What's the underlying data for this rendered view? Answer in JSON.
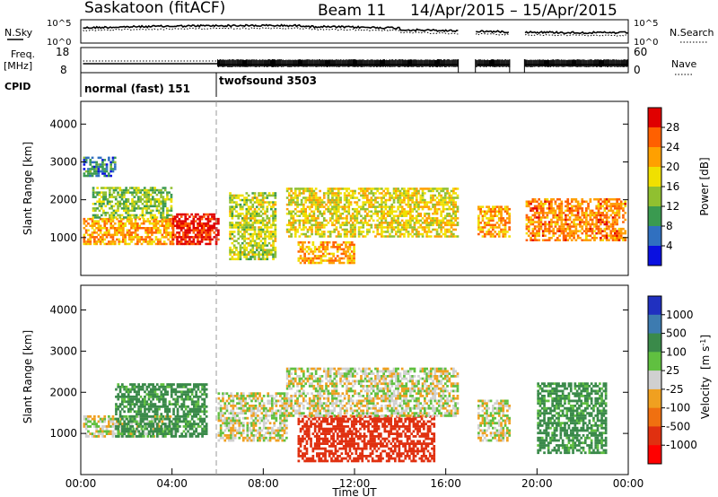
{
  "header": {
    "station": "Saskatoon (fitACF)",
    "beam": "Beam 11",
    "period": "14/Apr/2015 – 15/Apr/2015"
  },
  "noise_panel": {
    "left_label": "N.Sky",
    "right_label": "N.Search",
    "ticks": [
      "10^5",
      "10^0"
    ]
  },
  "freq_panel": {
    "left_label_1": "Freq.",
    "left_label_2": "[MHz]",
    "left_ticks": [
      "18",
      "8"
    ],
    "right_label": "Nave",
    "right_ticks": [
      "60",
      "0"
    ]
  },
  "cpid": {
    "label": "CPID",
    "segments": [
      {
        "name": "normal (fast) 151",
        "start": 0,
        "end": 6
      },
      {
        "name": "twofsound 3503",
        "start": 6,
        "end": 24
      }
    ]
  },
  "power_colorbar": {
    "label": "Power [dB]",
    "ticks": [
      "28",
      "24",
      "20",
      "16",
      "12",
      "8",
      "4"
    ],
    "colors": [
      "#e00000",
      "#ff6000",
      "#ffa000",
      "#f0e000",
      "#90c030",
      "#3a9a50",
      "#3070c0",
      "#0a10e0"
    ]
  },
  "velocity_colorbar": {
    "label_main": "Velocity",
    "label_unit": "[m s",
    "label_sup": "-1",
    "label_close": "]",
    "ticks": [
      "1000",
      "500",
      "100",
      "25",
      "-25",
      "-100",
      "-500",
      "-1000"
    ],
    "colors": [
      "#2030c0",
      "#3d7bb0",
      "#3a8a4a",
      "#60c040",
      "#d0d0d0",
      "#f0a020",
      "#f07010",
      "#e03010",
      "#ff0000"
    ]
  },
  "chart_data": [
    {
      "type": "heatmap",
      "title": "",
      "xlabel": "",
      "ylabel": "Slant Range [km]",
      "xlim": [
        0,
        24
      ],
      "ylim": [
        0,
        4600
      ],
      "yticks": [
        "1000",
        "2000",
        "3000",
        "4000"
      ],
      "quantity": "Power [dB]",
      "regions": [
        {
          "t0": 0.1,
          "t1": 4.0,
          "r0": 800,
          "r1": 1500,
          "level": 20
        },
        {
          "t0": 4.0,
          "t1": 6.0,
          "r0": 800,
          "r1": 1600,
          "level": 28
        },
        {
          "t0": 0.5,
          "t1": 4.0,
          "r0": 1500,
          "r1": 2300,
          "level": 12
        },
        {
          "t0": 0.1,
          "t1": 1.5,
          "r0": 2600,
          "r1": 3100,
          "level": 6
        },
        {
          "t0": 6.5,
          "t1": 8.5,
          "r0": 400,
          "r1": 2200,
          "level": 14
        },
        {
          "t0": 9.0,
          "t1": 16.5,
          "r0": 1000,
          "r1": 2300,
          "level": 16
        },
        {
          "t0": 9.5,
          "t1": 12.0,
          "r0": 300,
          "r1": 900,
          "level": 20
        },
        {
          "t0": 17.3,
          "t1": 18.8,
          "r0": 1000,
          "r1": 1800,
          "level": 20
        },
        {
          "t0": 19.5,
          "t1": 23.9,
          "r0": 900,
          "r1": 2000,
          "level": 22
        }
      ]
    },
    {
      "type": "heatmap",
      "title": "",
      "xlabel": "Time UT",
      "ylabel": "Slant Range [km]",
      "xlim": [
        0,
        24
      ],
      "ylim": [
        0,
        4600
      ],
      "xticks": [
        "00:00",
        "04:00",
        "08:00",
        "12:00",
        "16:00",
        "20:00",
        "00:00"
      ],
      "yticks": [
        "1000",
        "2000",
        "3000",
        "4000"
      ],
      "quantity": "Velocity [m s-1]",
      "regions": [
        {
          "t0": 0.1,
          "t1": 4.0,
          "r0": 900,
          "r1": 1400,
          "velocity": 0
        },
        {
          "t0": 1.5,
          "t1": 5.5,
          "r0": 900,
          "r1": 2200,
          "velocity": 100
        },
        {
          "t0": 6.0,
          "t1": 9.0,
          "r0": 800,
          "r1": 2000,
          "velocity": 0
        },
        {
          "t0": 9.5,
          "t1": 15.5,
          "r0": 300,
          "r1": 1400,
          "velocity": -500
        },
        {
          "t0": 9.0,
          "t1": 16.5,
          "r0": 1400,
          "r1": 2600,
          "velocity": 0
        },
        {
          "t0": 17.3,
          "t1": 18.8,
          "r0": 800,
          "r1": 1800,
          "velocity": 0
        },
        {
          "t0": 20.0,
          "t1": 23.0,
          "r0": 500,
          "r1": 2200,
          "velocity": 100
        }
      ]
    }
  ]
}
